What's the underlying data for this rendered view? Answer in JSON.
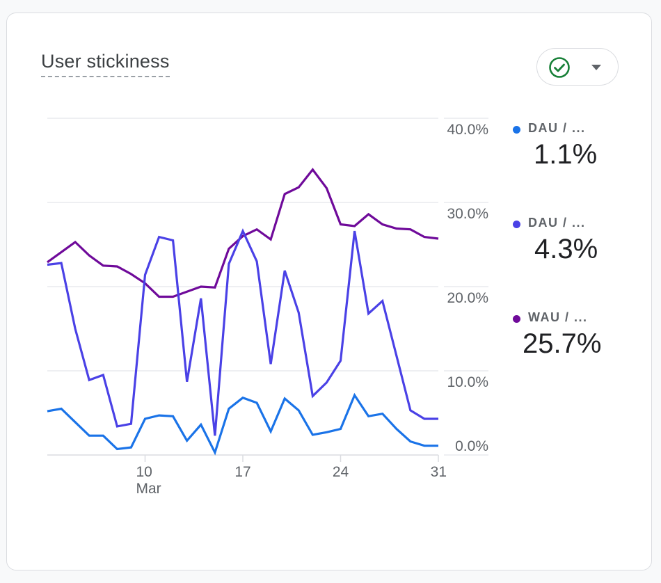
{
  "card": {
    "title": "User stickiness",
    "compare_button": {
      "icon": "check-circle-icon",
      "caret_icon": "caret-down-icon",
      "icon_color": "#188038"
    }
  },
  "legend": [
    {
      "label": "DAU / ...",
      "value": "1.1%",
      "color": "#1a73e8"
    },
    {
      "label": "DAU / ...",
      "value": "4.3%",
      "color": "#4a41e6"
    },
    {
      "label": "WAU / ...",
      "value": "25.7%",
      "color": "#6f0a9a"
    }
  ],
  "chart_data": {
    "type": "line",
    "title": "User stickiness",
    "xlabel": "",
    "ylabel": "",
    "x": [
      3,
      4,
      5,
      6,
      7,
      8,
      9,
      10,
      11,
      12,
      13,
      14,
      15,
      16,
      17,
      18,
      19,
      20,
      21,
      22,
      23,
      24,
      25,
      26,
      27,
      28,
      29,
      30,
      31
    ],
    "x_ticks": [
      {
        "value": 10,
        "label": "10",
        "sublabel": "Mar"
      },
      {
        "value": 17,
        "label": "17",
        "sublabel": ""
      },
      {
        "value": 24,
        "label": "24",
        "sublabel": ""
      },
      {
        "value": 31,
        "label": "31",
        "sublabel": ""
      }
    ],
    "y_ticks": [
      "0.0%",
      "10.0%",
      "20.0%",
      "30.0%",
      "40.0%"
    ],
    "y_tick_values": [
      0,
      10,
      20,
      30,
      40
    ],
    "ylim": [
      0,
      40
    ],
    "y_axis_position": "right",
    "grid": true,
    "legend_position": "right",
    "series": [
      {
        "name": "WAU / MAU",
        "color": "#6f0a9a",
        "values": [
          22.9,
          24.1,
          25.3,
          23.7,
          22.5,
          22.4,
          21.5,
          20.4,
          18.8,
          18.8,
          19.4,
          20.0,
          19.9,
          24.5,
          26.0,
          26.8,
          25.6,
          31.0,
          31.8,
          33.9,
          31.7,
          27.4,
          27.2,
          28.6,
          27.4,
          26.9,
          26.8,
          25.9,
          25.7
        ]
      },
      {
        "name": "DAU / WAU",
        "color": "#4a41e6",
        "values": [
          22.6,
          22.8,
          15.0,
          8.9,
          9.5,
          3.4,
          3.7,
          21.4,
          25.9,
          25.5,
          8.7,
          18.6,
          2.3,
          22.7,
          26.6,
          23.0,
          10.8,
          21.9,
          16.9,
          7.0,
          8.6,
          11.2,
          26.6,
          16.8,
          18.3,
          11.8,
          5.3,
          4.3,
          4.3
        ]
      },
      {
        "name": "DAU / MAU",
        "color": "#1a73e8",
        "values": [
          5.2,
          5.5,
          3.9,
          2.3,
          2.3,
          0.7,
          0.9,
          4.3,
          4.7,
          4.6,
          1.7,
          3.6,
          0.3,
          5.5,
          6.8,
          6.2,
          2.8,
          6.7,
          5.3,
          2.4,
          2.7,
          3.1,
          7.1,
          4.6,
          4.9,
          3.1,
          1.6,
          1.1,
          1.1
        ]
      }
    ]
  }
}
